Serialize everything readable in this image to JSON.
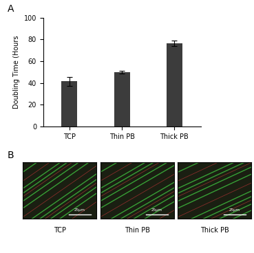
{
  "panel_labels": [
    "A",
    "B"
  ],
  "chart_data": {
    "type": "bar",
    "y_label": "Doubling Time (Hours",
    "categories": [
      "TCP",
      "Thin PB",
      "Thick PB"
    ],
    "values": [
      41.5,
      50,
      76.5
    ],
    "errors": [
      4,
      1.5,
      2.5
    ],
    "color": "#3c3c3c",
    "ylim": [
      0,
      100
    ],
    "yticks": [
      0,
      20,
      40,
      60,
      80,
      100
    ]
  },
  "images": [
    {
      "label": "TCP",
      "scale_bar": "25µm"
    },
    {
      "label": "Thin PB",
      "scale_bar": "25µm"
    },
    {
      "label": "Thick PB",
      "scale_bar": "25µm"
    }
  ]
}
